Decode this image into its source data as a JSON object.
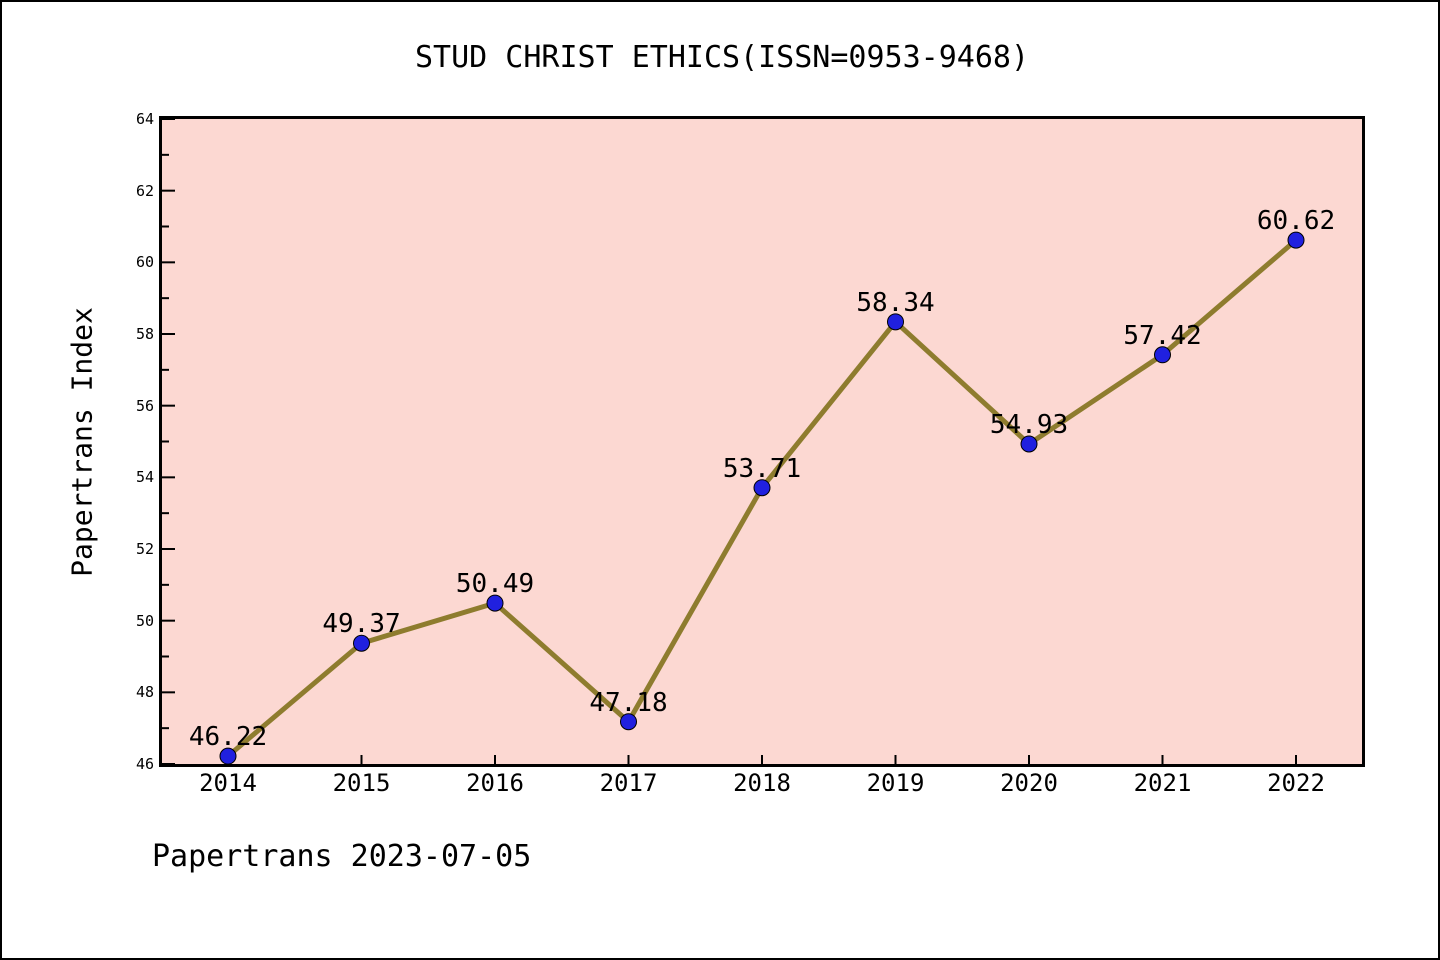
{
  "title": "STUD CHRIST ETHICS(ISSN=0953-9468)",
  "footer": "Papertrans 2023-07-05",
  "chart_data": {
    "type": "line",
    "title": "STUD CHRIST ETHICS(ISSN=0953-9468)",
    "x": [
      2014,
      2015,
      2016,
      2017,
      2018,
      2019,
      2020,
      2021,
      2022
    ],
    "values": [
      46.22,
      49.37,
      50.49,
      47.18,
      53.71,
      58.34,
      54.93,
      57.42,
      60.62
    ],
    "xlabel": "",
    "ylabel": "Papertrans Index",
    "ylim": [
      46,
      64
    ],
    "ytick_major_step": 2,
    "ytick_minor_step": 1,
    "grid": false,
    "legend": "none",
    "point_label_decimals": 2,
    "colors": {
      "plot_background": "#fcd8d2",
      "line": "#8e7c2e",
      "marker": "#2020df",
      "marker_edge": "#000000",
      "axis": "#000000",
      "text": "#000000",
      "page_background": "#ffffff",
      "page_border": "#000000"
    }
  }
}
